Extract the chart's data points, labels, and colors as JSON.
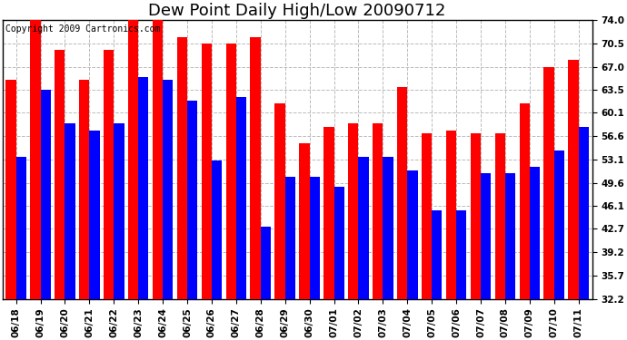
{
  "title": "Dew Point Daily High/Low 20090712",
  "copyright_text": "Copyright 2009 Cartronics.com",
  "dates": [
    "06/18",
    "06/19",
    "06/20",
    "06/21",
    "06/22",
    "06/23",
    "06/24",
    "06/25",
    "06/26",
    "06/27",
    "06/28",
    "06/29",
    "06/30",
    "07/01",
    "07/02",
    "07/03",
    "07/04",
    "07/05",
    "07/06",
    "07/07",
    "07/08",
    "07/09",
    "07/10",
    "07/11"
  ],
  "highs": [
    65.0,
    74.5,
    69.5,
    65.0,
    69.5,
    74.5,
    74.5,
    71.5,
    70.5,
    70.5,
    71.5,
    61.5,
    55.5,
    58.0,
    58.5,
    58.5,
    64.0,
    57.0,
    57.5,
    57.0,
    57.0,
    61.5,
    67.0,
    68.0
  ],
  "lows": [
    53.5,
    63.5,
    58.5,
    57.5,
    58.5,
    65.5,
    65.0,
    62.0,
    53.0,
    62.5,
    43.0,
    50.5,
    50.5,
    49.0,
    53.5,
    53.5,
    51.5,
    45.5,
    45.5,
    51.0,
    51.0,
    52.0,
    54.5,
    58.0
  ],
  "high_color": "#ff0000",
  "low_color": "#0000ff",
  "bg_color": "#ffffff",
  "grid_color": "#bbbbbb",
  "ymin": 32.2,
  "ymax": 74.0,
  "yticks": [
    32.2,
    35.7,
    39.2,
    42.7,
    46.1,
    49.6,
    53.1,
    56.6,
    60.1,
    63.5,
    67.0,
    70.5,
    74.0
  ],
  "bar_width": 0.42,
  "title_fontsize": 13,
  "tick_fontsize": 7.5,
  "copyright_fontsize": 7
}
